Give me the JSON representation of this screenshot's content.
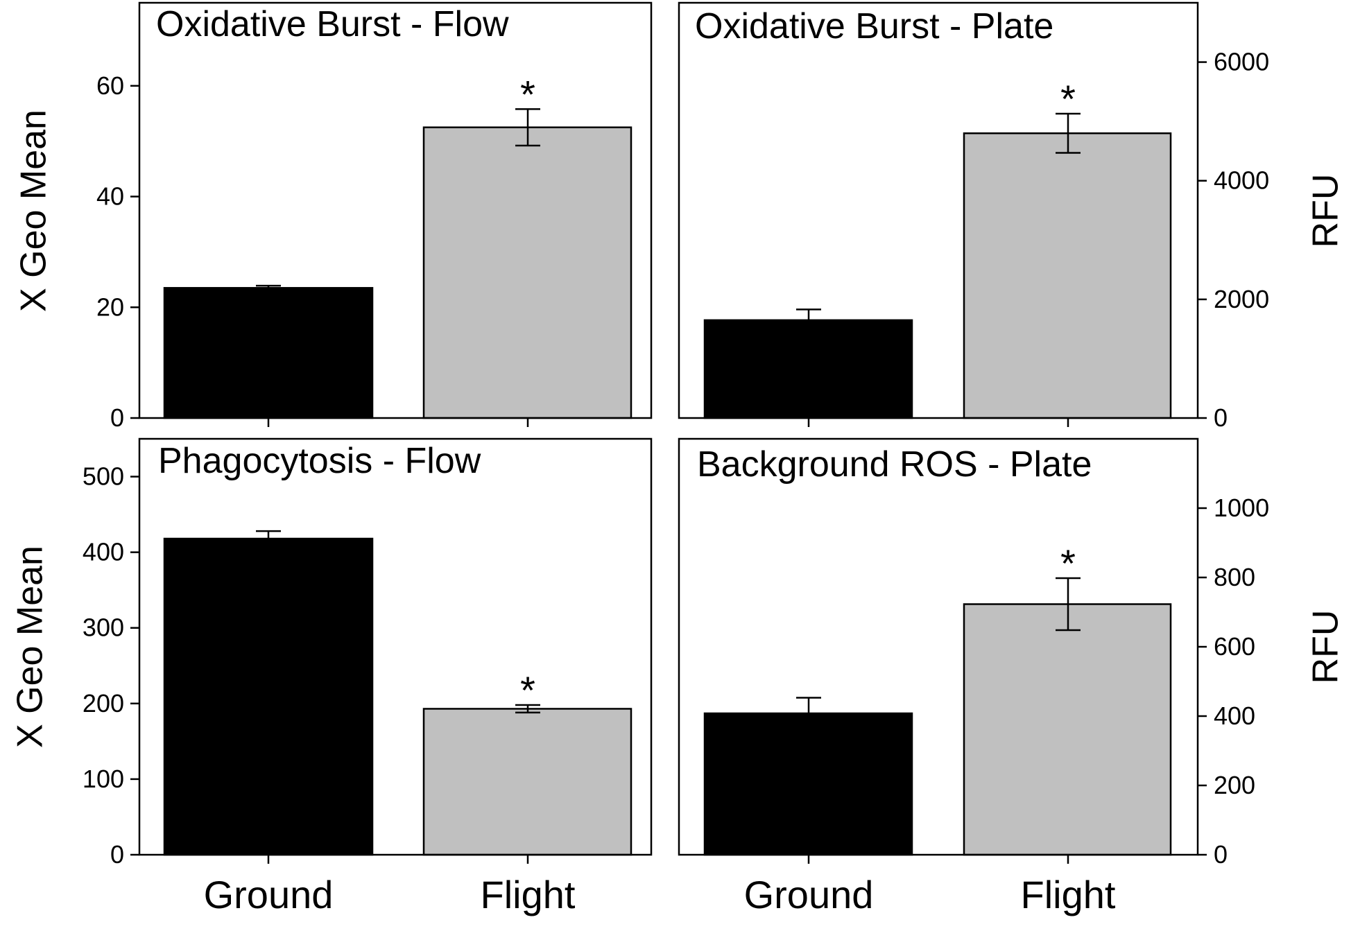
{
  "chart_data": [
    {
      "type": "bar",
      "title": "Oxidative Burst - Flow",
      "ylabel": "X Geo Mean",
      "ylim": [
        0,
        75
      ],
      "yticks": [
        "0",
        "20",
        "40",
        "60"
      ],
      "categories": [
        "Ground",
        "Flight"
      ],
      "values": [
        23.5,
        52.5
      ],
      "errors": [
        0.4,
        3.3
      ],
      "significant": [
        false,
        true
      ],
      "colors": [
        "#000000",
        "#c0c0c0"
      ]
    },
    {
      "type": "bar",
      "title": "Oxidative Burst - Plate",
      "ylabel": "RFU",
      "ylim": [
        0,
        7000
      ],
      "yticks": [
        "0",
        "2000",
        "4000",
        "6000"
      ],
      "categories": [
        "Ground",
        "Flight"
      ],
      "values": [
        1650,
        4800
      ],
      "errors": [
        180,
        330
      ],
      "significant": [
        false,
        true
      ],
      "colors": [
        "#000000",
        "#c0c0c0"
      ]
    },
    {
      "type": "bar",
      "title": "Phagocytosis - Flow",
      "ylabel": "X Geo Mean",
      "ylim": [
        0,
        550
      ],
      "yticks": [
        "0",
        "100",
        "200",
        "300",
        "400",
        "500"
      ],
      "categories": [
        "Ground",
        "Flight"
      ],
      "values": [
        418,
        193
      ],
      "errors": [
        10,
        5
      ],
      "significant": [
        false,
        true
      ],
      "colors": [
        "#000000",
        "#c0c0c0"
      ]
    },
    {
      "type": "bar",
      "title": "Background ROS - Plate",
      "ylabel": "RFU",
      "ylim": [
        0,
        1200
      ],
      "yticks": [
        "0",
        "200",
        "400",
        "600",
        "800",
        "1000"
      ],
      "categories": [
        "Ground",
        "Flight"
      ],
      "values": [
        408,
        723
      ],
      "errors": [
        45,
        75
      ],
      "significant": [
        false,
        true
      ],
      "colors": [
        "#000000",
        "#c0c0c0"
      ]
    }
  ]
}
